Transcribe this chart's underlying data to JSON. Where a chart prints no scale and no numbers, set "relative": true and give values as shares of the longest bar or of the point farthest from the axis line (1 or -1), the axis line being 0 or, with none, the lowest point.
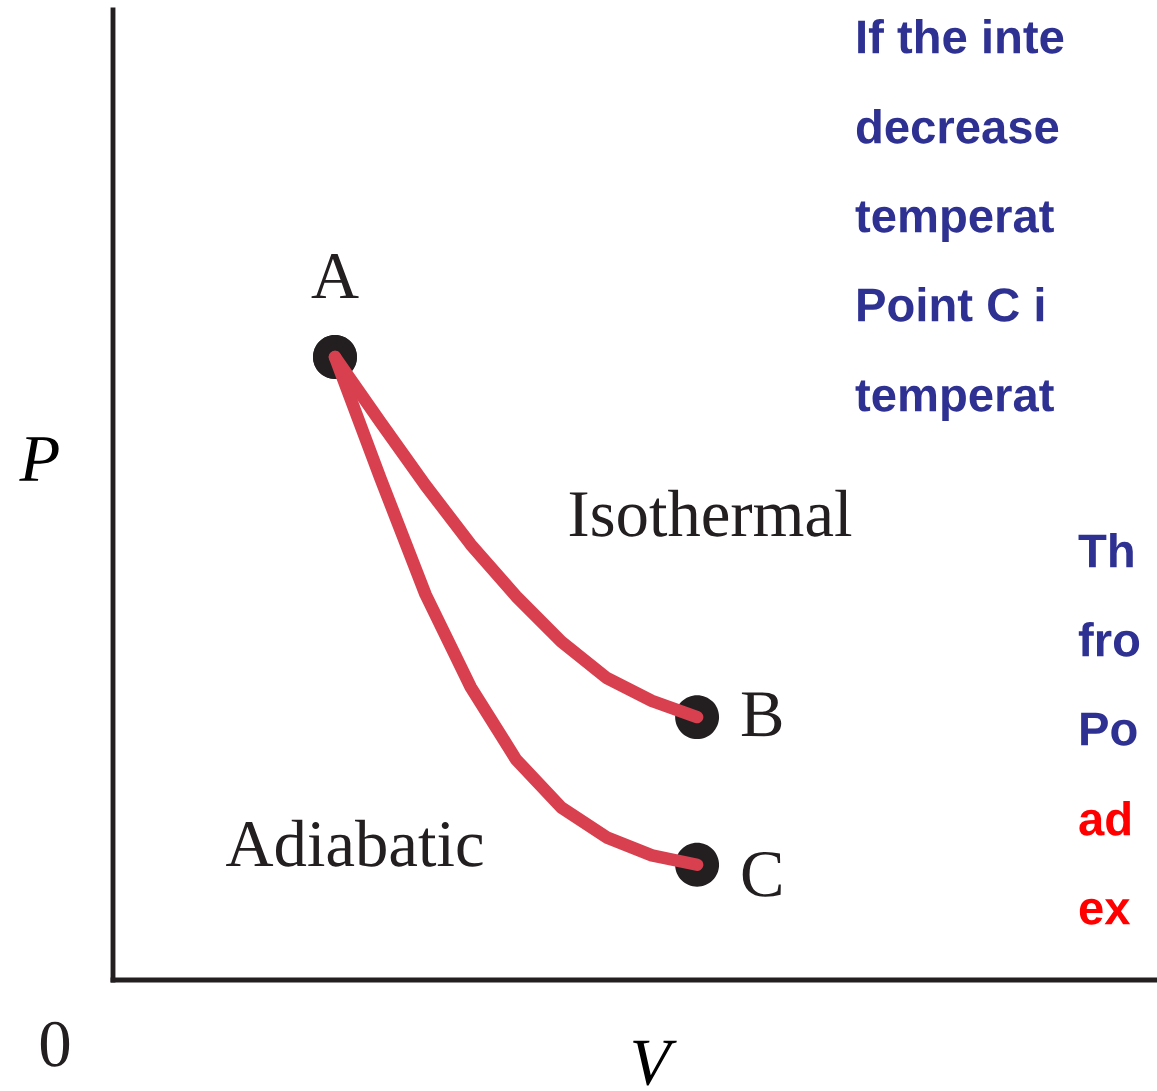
{
  "chart_data": {
    "type": "line",
    "relative": true,
    "xlabel": "V",
    "ylabel": "P",
    "categories": [
      null,
      null,
      null,
      null,
      null,
      null,
      null,
      null,
      null
    ],
    "series": [
      {
        "color": "#d9404f",
        "values": [
          1.0,
          0.896,
          0.794,
          0.699,
          0.616,
          0.543,
          0.485,
          0.448,
          0.422
        ]
      },
      {
        "color": "#d9404f",
        "values": [
          1.0,
          0.806,
          0.619,
          0.47,
          0.354,
          0.277,
          0.229,
          0.2,
          0.185
        ]
      }
    ],
    "annotations": [
      "A",
      "B",
      "C",
      "Isothermal",
      "Adiabatic",
      "0",
      "If the inte",
      "decrease",
      "temperat",
      "Point C i",
      "temperat",
      "Th",
      "fro",
      "Po",
      "ad",
      "ex"
    ],
    "line_style": "solid"
  }
}
